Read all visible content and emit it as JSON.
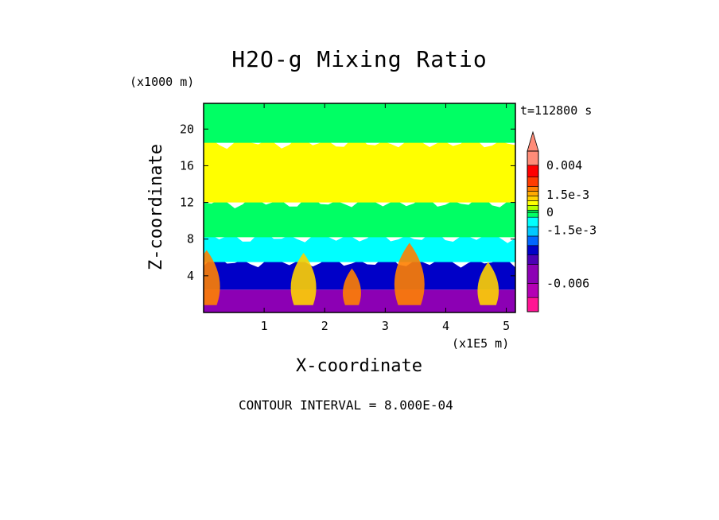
{
  "chart_data": {
    "type": "heatmap",
    "title": "H2O-g Mixing Ratio",
    "xlabel": "X-coordinate",
    "ylabel": "Z-coordinate",
    "x_unit": "(x1E5 m)",
    "y_unit": "(x1000 m)",
    "time_label": "t=112800 s",
    "footer": "CONTOUR INTERVAL = 8.000E-04",
    "x_ticks": [
      "1",
      "2",
      "3",
      "4",
      "5"
    ],
    "y_ticks": [
      "4",
      "8",
      "12",
      "16",
      "20"
    ],
    "x_tick_values": [
      1,
      2,
      3,
      4,
      5
    ],
    "y_tick_values": [
      4,
      8,
      12,
      16,
      20
    ],
    "xlim": [
      0,
      5.15
    ],
    "ylim": [
      0,
      22.8
    ],
    "colorbar_labels": [
      "0.004",
      "1.5e-3",
      "0",
      "-1.5e-3",
      "-0.006"
    ],
    "colorbar_label_values": [
      0.004,
      0.0015,
      0,
      -0.0015,
      -0.006
    ],
    "colorbar_range": [
      -0.0084,
      0.0052
    ],
    "colorbar_colors": [
      "#ff1493",
      "#b400b4",
      "#8c00b4",
      "#4b00b4",
      "#0000c8",
      "#0066ff",
      "#00c8ff",
      "#00ffff",
      "#00ff64",
      "#00e050",
      "#b4ff00",
      "#ffff00",
      "#ffd200",
      "#ffaa00",
      "#ff8000",
      "#ff3c00",
      "#ff0000",
      "#ff8c78"
    ],
    "colorbar_levels": [
      -0.0084,
      -0.0072,
      -0.006,
      -0.0044,
      -0.0036,
      -0.0028,
      -0.002,
      -0.0012,
      -0.0004,
      0.0,
      0.0002,
      0.0006,
      0.001,
      0.0014,
      0.0018,
      0.0022,
      0.003,
      0.004,
      0.0052
    ],
    "field_bands": [
      {
        "z_from": 0.0,
        "z_to": 2.5,
        "level": "-0.006",
        "color": "#8c00b4"
      },
      {
        "z_from": 2.5,
        "z_to": 5.5,
        "level": "-1.5e-3",
        "color": "#0000c8"
      },
      {
        "z_from": 5.5,
        "z_to": 8.2,
        "level": "-8.0e-4",
        "color": "#00ffff"
      },
      {
        "z_from": 8.2,
        "z_to": 12.0,
        "level": "0",
        "color": "#00ff64"
      },
      {
        "z_from": 12.0,
        "z_to": 18.5,
        "level": "8.0e-4",
        "color": "#ffff00"
      },
      {
        "z_from": 18.5,
        "z_to": 22.8,
        "level": "0",
        "color": "#00ff64"
      }
    ],
    "plumes": [
      {
        "x": 0.05,
        "z_top": 6.8,
        "color": "#ff8000"
      },
      {
        "x": 1.65,
        "z_top": 6.5,
        "color": "#ffd200"
      },
      {
        "x": 2.45,
        "z_top": 4.8,
        "color": "#ff8000"
      },
      {
        "x": 3.4,
        "z_top": 7.6,
        "color": "#ff8000"
      },
      {
        "x": 4.7,
        "z_top": 5.5,
        "color": "#ffd200"
      }
    ]
  }
}
